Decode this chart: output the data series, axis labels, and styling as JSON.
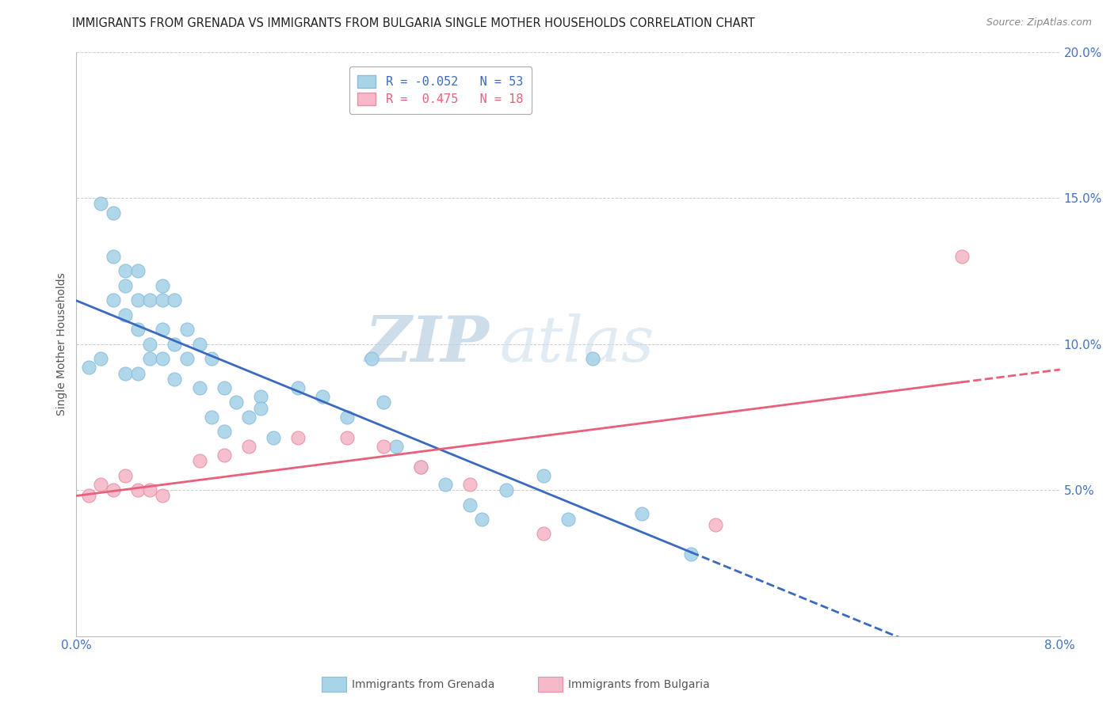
{
  "title": "IMMIGRANTS FROM GRENADA VS IMMIGRANTS FROM BULGARIA SINGLE MOTHER HOUSEHOLDS CORRELATION CHART",
  "source": "Source: ZipAtlas.com",
  "xlabel_grenada": "Immigrants from Grenada",
  "xlabel_bulgaria": "Immigrants from Bulgaria",
  "ylabel": "Single Mother Households",
  "xlim": [
    0.0,
    0.08
  ],
  "ylim": [
    0.0,
    0.2
  ],
  "xticks": [
    0.0,
    0.01,
    0.02,
    0.03,
    0.04,
    0.05,
    0.06,
    0.07,
    0.08
  ],
  "yticks": [
    0.0,
    0.05,
    0.1,
    0.15,
    0.2
  ],
  "legend_grenada": "R = -0.052   N = 53",
  "legend_bulgaria": "R =  0.475   N = 18",
  "color_grenada": "#a8d4e8",
  "color_grenada_line_fill": "#8cbcda",
  "color_bulgaria": "#f5b8c8",
  "color_bulgaria_line_fill": "#e890a8",
  "color_line_grenada": "#3a6abf",
  "color_line_bulgaria": "#e8607a",
  "grenada_x": [
    0.001,
    0.002,
    0.002,
    0.003,
    0.003,
    0.003,
    0.004,
    0.004,
    0.004,
    0.004,
    0.005,
    0.005,
    0.005,
    0.005,
    0.006,
    0.006,
    0.006,
    0.007,
    0.007,
    0.007,
    0.007,
    0.008,
    0.008,
    0.008,
    0.009,
    0.009,
    0.01,
    0.01,
    0.011,
    0.011,
    0.012,
    0.012,
    0.013,
    0.014,
    0.015,
    0.015,
    0.016,
    0.018,
    0.02,
    0.022,
    0.024,
    0.025,
    0.026,
    0.028,
    0.03,
    0.032,
    0.033,
    0.035,
    0.038,
    0.04,
    0.042,
    0.046,
    0.05
  ],
  "grenada_y": [
    0.092,
    0.148,
    0.095,
    0.145,
    0.13,
    0.115,
    0.125,
    0.12,
    0.11,
    0.09,
    0.125,
    0.115,
    0.105,
    0.09,
    0.115,
    0.1,
    0.095,
    0.12,
    0.115,
    0.105,
    0.095,
    0.115,
    0.1,
    0.088,
    0.105,
    0.095,
    0.1,
    0.085,
    0.095,
    0.075,
    0.085,
    0.07,
    0.08,
    0.075,
    0.082,
    0.078,
    0.068,
    0.085,
    0.082,
    0.075,
    0.095,
    0.08,
    0.065,
    0.058,
    0.052,
    0.045,
    0.04,
    0.05,
    0.055,
    0.04,
    0.095,
    0.042,
    0.028
  ],
  "bulgaria_x": [
    0.001,
    0.002,
    0.003,
    0.004,
    0.005,
    0.006,
    0.007,
    0.01,
    0.012,
    0.014,
    0.018,
    0.022,
    0.025,
    0.028,
    0.032,
    0.038,
    0.052,
    0.072
  ],
  "bulgaria_y": [
    0.048,
    0.052,
    0.05,
    0.055,
    0.05,
    0.05,
    0.048,
    0.06,
    0.062,
    0.065,
    0.068,
    0.068,
    0.065,
    0.058,
    0.052,
    0.035,
    0.038,
    0.13
  ],
  "watermark_zip": "ZIP",
  "watermark_atlas": "atlas",
  "background_color": "#ffffff",
  "grid_color": "#cccccc",
  "title_color": "#222222",
  "source_color": "#888888",
  "ylabel_color": "#555555",
  "tick_color": "#4472c4",
  "tick_fontsize": 11
}
